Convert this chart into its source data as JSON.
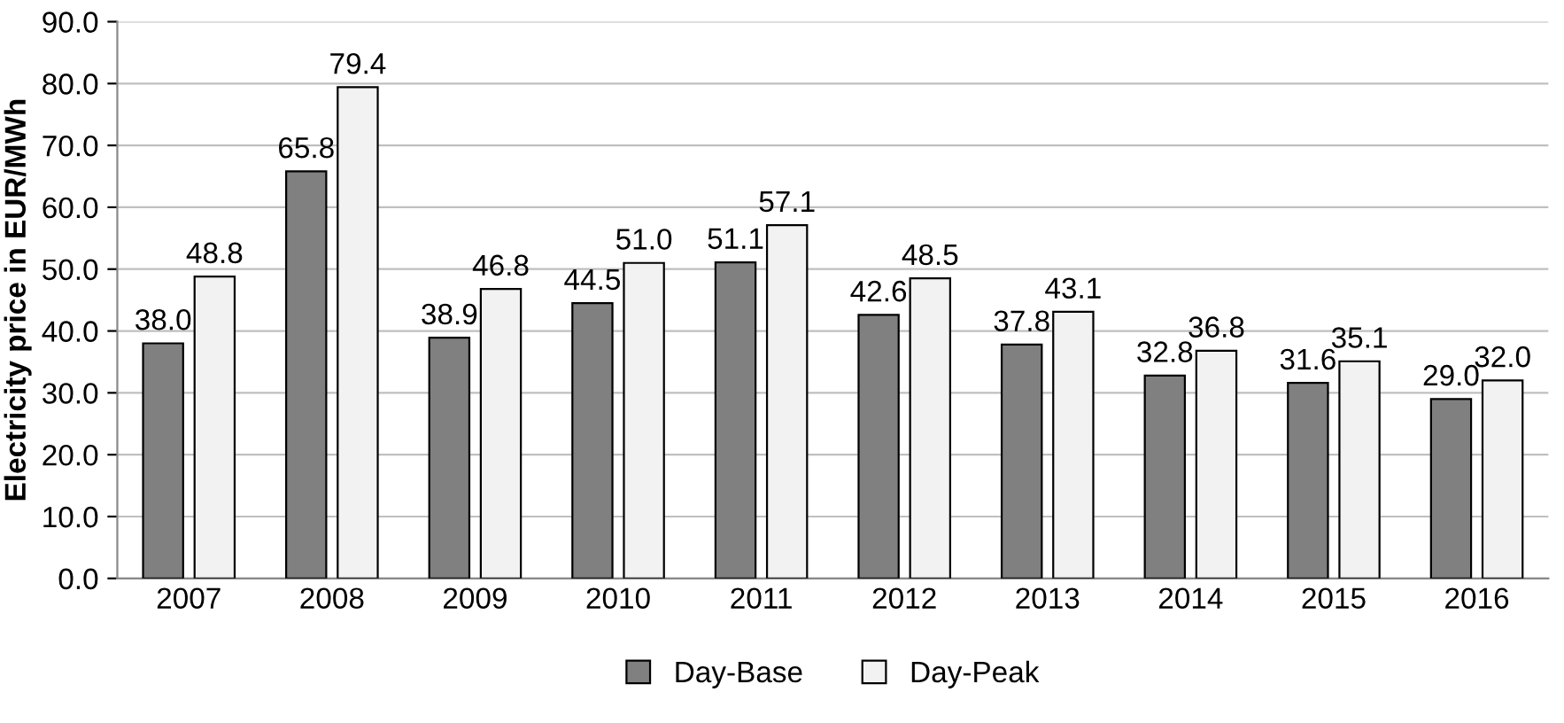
{
  "chart_data": {
    "type": "bar",
    "ylabel": "Electricity price in EUR/MWh",
    "categories": [
      "2007",
      "2008",
      "2009",
      "2010",
      "2011",
      "2012",
      "2013",
      "2014",
      "2015",
      "2016"
    ],
    "series": [
      {
        "name": "Day-Base",
        "color": "#808080",
        "values": [
          38.0,
          65.8,
          38.9,
          44.5,
          51.1,
          42.6,
          37.8,
          32.8,
          31.6,
          29.0
        ],
        "value_labels": [
          "38.0",
          "65.8",
          "38.9",
          "44.5",
          "51.1",
          "42.6",
          "37.8",
          "32.8",
          "31.6",
          "29.0"
        ]
      },
      {
        "name": "Day-Peak",
        "color": "#f2f2f2",
        "values": [
          48.8,
          79.4,
          46.8,
          51.0,
          57.1,
          48.5,
          43.1,
          36.8,
          35.1,
          32.0
        ],
        "value_labels": [
          "48.8",
          "79.4",
          "46.8",
          "51.0",
          "57.1",
          "48.5",
          "43.1",
          "36.8",
          "35.1",
          "32.0"
        ]
      }
    ],
    "ylim": [
      0,
      90
    ],
    "yticks": [
      {
        "value": 0,
        "label": "0.0"
      },
      {
        "value": 10,
        "label": "10.0"
      },
      {
        "value": 20,
        "label": "20.0"
      },
      {
        "value": 30,
        "label": "30.0"
      },
      {
        "value": 40,
        "label": "40.0"
      },
      {
        "value": 50,
        "label": "50.0"
      },
      {
        "value": 60,
        "label": "60.0"
      },
      {
        "value": 70,
        "label": "70.0"
      },
      {
        "value": 80,
        "label": "80.0"
      },
      {
        "value": 90,
        "label": "90.0"
      }
    ],
    "grid": "y",
    "legend": "bottom"
  }
}
